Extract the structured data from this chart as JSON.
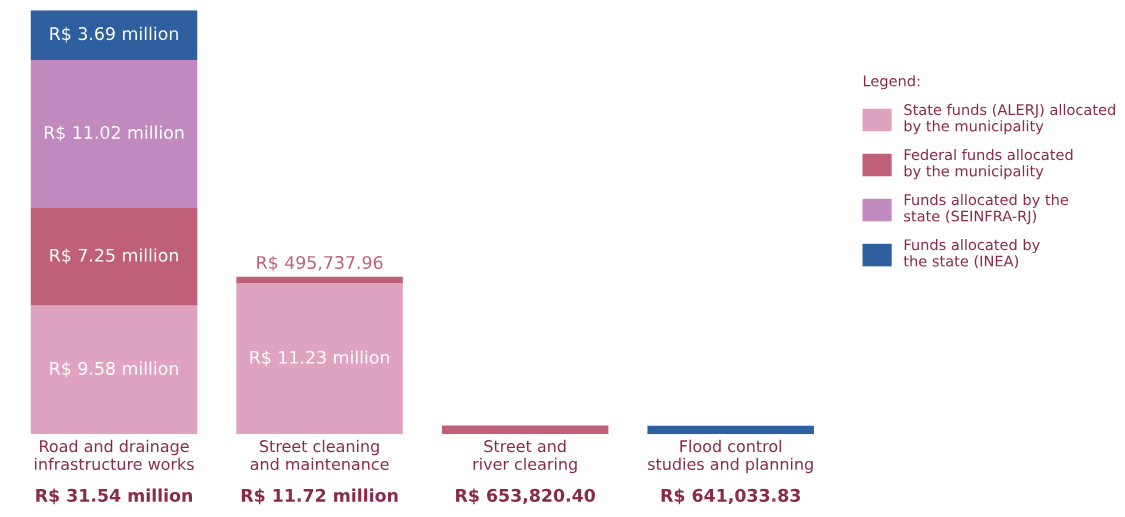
{
  "chart_data": {
    "type": "bar",
    "stacked": true,
    "legend": "right",
    "legend_title": "Legend:",
    "categories": [
      "Road and drainage infrastructure works",
      "Street cleaning and maintenance",
      "Street and river clearing",
      "Flood control studies and planning"
    ],
    "totals": [
      "R$ 31.54 million",
      "R$ 11.72 million",
      "R$ 653,820.40",
      "R$ 641,033.83"
    ],
    "series": [
      {
        "name": "State funds (ALERJ) allocated by the municipality",
        "color": "#e0a3bf",
        "values": [
          9580000,
          11230000,
          null,
          null
        ],
        "value_labels": [
          "R$ 9.58 million",
          "R$ 11.23 million",
          null,
          null
        ]
      },
      {
        "name": "Federal funds allocated by the municipality",
        "color": "#c06078",
        "values": [
          7250000,
          495737.96,
          653820.4,
          null
        ],
        "value_labels": [
          "R$ 7.25 million",
          "R$ 495,737.96",
          null,
          null
        ]
      },
      {
        "name": "Funds allocated by the state (SEINFRA-RJ)",
        "color": "#c08abf",
        "values": [
          11020000,
          null,
          null,
          null
        ],
        "value_labels": [
          "R$ 11.02 million",
          null,
          null,
          null
        ]
      },
      {
        "name": "Funds allocated by the state (INEA)",
        "color": "#2e5f9e",
        "values": [
          3690000,
          null,
          null,
          641033.83
        ],
        "value_labels": [
          "R$ 3.69 million",
          null,
          null,
          null
        ]
      }
    ]
  }
}
